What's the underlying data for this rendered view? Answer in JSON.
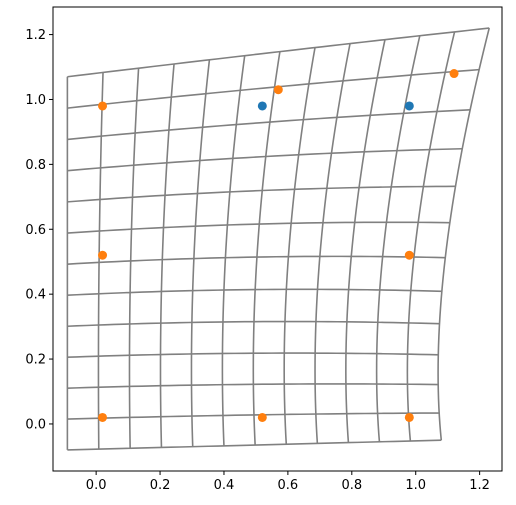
{
  "chart_data": {
    "type": "scatter",
    "title": "",
    "xlabel": "",
    "ylabel": "",
    "xlim": [
      -0.135,
      1.27
    ],
    "ylim": [
      -0.145,
      1.285
    ],
    "x_ticks": [
      0.0,
      0.2,
      0.4,
      0.6,
      0.8,
      1.0,
      1.2
    ],
    "x_tick_labels": [
      "0.0",
      "0.2",
      "0.4",
      "0.6",
      "0.8",
      "1.0",
      "1.2"
    ],
    "y_ticks": [
      0.0,
      0.2,
      0.4,
      0.6,
      0.8,
      1.0,
      1.2
    ],
    "y_tick_labels": [
      "0.0",
      "0.2",
      "0.4",
      "0.6",
      "0.8",
      "1.0",
      "1.2"
    ],
    "grid": false,
    "legend": "none",
    "colors": {
      "mesh": "#808080",
      "series_a": "#1f77b4",
      "series_b": "#ff7f0e"
    },
    "deformed_grid": {
      "lines_per_direction": 13,
      "corners": {
        "bottom_left": [
          -0.09,
          -0.08
        ],
        "bottom_right": [
          1.08,
          -0.05
        ],
        "top_left": [
          -0.09,
          1.07
        ],
        "top_right": [
          1.23,
          1.22
        ]
      },
      "mid_edges": {
        "left": [
          -0.09,
          0.49
        ],
        "right": [
          1.03,
          0.44
        ],
        "bottom": [
          0.5,
          -0.065
        ],
        "top": [
          0.58,
          1.15
        ]
      },
      "center": [
        0.47,
        0.51
      ]
    },
    "series": [
      {
        "values": [
          {
            "x": 0.52,
            "y": 0.98
          },
          {
            "x": 0.98,
            "y": 0.98
          }
        ]
      },
      {
        "values": [
          {
            "x": 0.02,
            "y": 0.98
          },
          {
            "x": 0.57,
            "y": 1.03
          },
          {
            "x": 1.12,
            "y": 1.08
          },
          {
            "x": 0.02,
            "y": 0.52
          },
          {
            "x": 0.98,
            "y": 0.52
          },
          {
            "x": 0.02,
            "y": 0.02
          },
          {
            "x": 0.52,
            "y": 0.02
          },
          {
            "x": 0.98,
            "y": 0.02
          }
        ]
      }
    ]
  }
}
